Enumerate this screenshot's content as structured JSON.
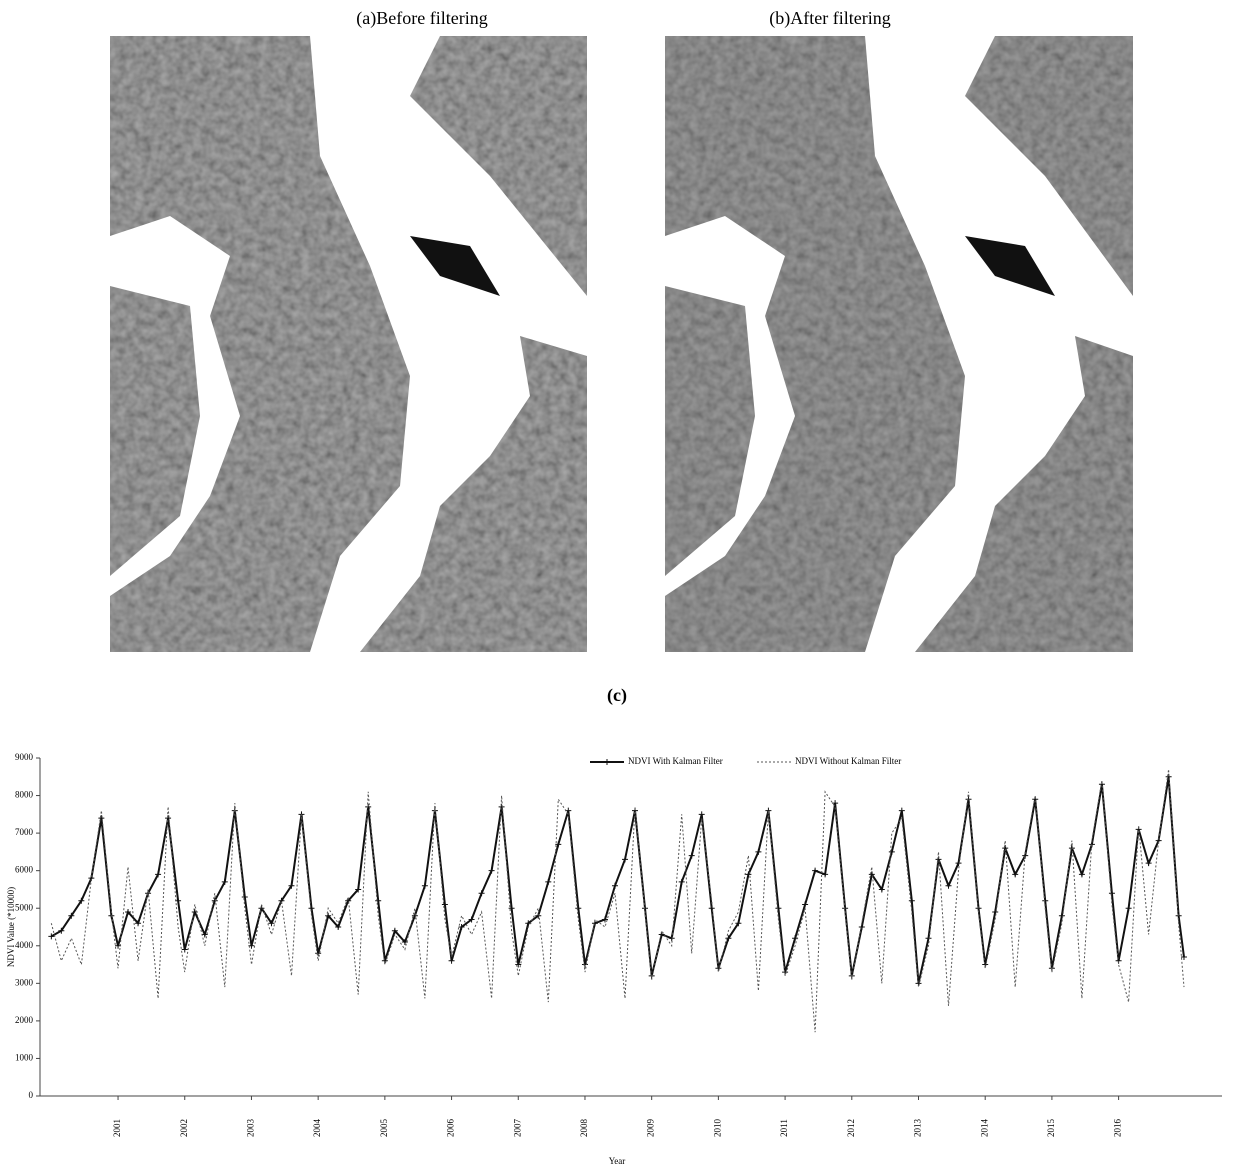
{
  "panels": [
    {
      "title": "(a)Before filtering"
    },
    {
      "title": "(b)After filtering"
    }
  ],
  "chart_data": {
    "type": "line",
    "title": "(c)",
    "x_label": "Year",
    "y_label": "NDVI Value (*10000)",
    "x": [
      2000,
      2000.15,
      2000.3,
      2000.45,
      2000.6,
      2000.75,
      2000.9,
      2001,
      2001.15,
      2001.3,
      2001.45,
      2001.6,
      2001.75,
      2001.9,
      2002,
      2002.15,
      2002.3,
      2002.45,
      2002.6,
      2002.75,
      2002.9,
      2003,
      2003.15,
      2003.3,
      2003.45,
      2003.6,
      2003.75,
      2003.9,
      2004,
      2004.15,
      2004.3,
      2004.45,
      2004.6,
      2004.75,
      2004.9,
      2005,
      2005.15,
      2005.3,
      2005.45,
      2005.6,
      2005.75,
      2005.9,
      2006,
      2006.15,
      2006.3,
      2006.45,
      2006.6,
      2006.75,
      2006.9,
      2007,
      2007.15,
      2007.3,
      2007.45,
      2007.6,
      2007.75,
      2007.9,
      2008,
      2008.15,
      2008.3,
      2008.45,
      2008.6,
      2008.75,
      2008.9,
      2009,
      2009.15,
      2009.3,
      2009.45,
      2009.6,
      2009.75,
      2009.9,
      2010,
      2010.15,
      2010.3,
      2010.45,
      2010.6,
      2010.75,
      2010.9,
      2011,
      2011.15,
      2011.3,
      2011.45,
      2011.6,
      2011.75,
      2011.9,
      2012,
      2012.15,
      2012.3,
      2012.45,
      2012.6,
      2012.75,
      2012.9,
      2013,
      2013.15,
      2013.3,
      2013.45,
      2013.6,
      2013.75,
      2013.9,
      2014,
      2014.15,
      2014.3,
      2014.45,
      2014.6,
      2014.75,
      2014.9,
      2015,
      2015.15,
      2015.3,
      2015.45,
      2015.6,
      2015.75,
      2015.9,
      2016,
      2016.15,
      2016.3,
      2016.45,
      2016.6,
      2016.75,
      2016.9,
      2016.98
    ],
    "series": [
      {
        "name": "NDVI With Kalman Filter",
        "color": "#111111",
        "line_style": "solid",
        "marker": "cross",
        "values": [
          4250,
          4400,
          4800,
          5200,
          5800,
          7400,
          4800,
          4000,
          4900,
          4600,
          5400,
          5900,
          7400,
          5200,
          3900,
          4900,
          4300,
          5200,
          5700,
          7600,
          5300,
          4000,
          5000,
          4600,
          5200,
          5600,
          7500,
          5000,
          3800,
          4800,
          4500,
          5200,
          5500,
          7700,
          5200,
          3600,
          4400,
          4100,
          4800,
          5600,
          7600,
          5100,
          3600,
          4500,
          4700,
          5400,
          6000,
          7700,
          5000,
          3500,
          4600,
          4800,
          5700,
          6700,
          7600,
          5000,
          3500,
          4600,
          4700,
          5600,
          6300,
          7600,
          5000,
          3200,
          4300,
          4200,
          5700,
          6400,
          7500,
          5000,
          3400,
          4200,
          4600,
          5900,
          6500,
          7600,
          5000,
          3300,
          4200,
          5100,
          6000,
          5900,
          7800,
          5000,
          3200,
          4500,
          5900,
          5500,
          6500,
          7600,
          5200,
          3000,
          4200,
          6300,
          5600,
          6200,
          7900,
          5000,
          3500,
          4900,
          6600,
          5900,
          6400,
          7900,
          5200,
          3400,
          4800,
          6600,
          5900,
          6700,
          8300,
          5400,
          3600,
          5000,
          7100,
          6200,
          6800,
          8500,
          4800,
          3700
        ]
      },
      {
        "name": "NDVI Without Kalman Filter",
        "color": "#555555",
        "line_style": "dashed",
        "marker": "none",
        "values": [
          4600,
          3600,
          4200,
          3500,
          5800,
          7600,
          4900,
          3400,
          6100,
          3600,
          5500,
          2600,
          7700,
          4500,
          3300,
          5100,
          4000,
          5400,
          2900,
          7800,
          5000,
          3500,
          5100,
          4300,
          5200,
          3200,
          7500,
          4800,
          3600,
          5000,
          4600,
          5300,
          2700,
          8100,
          4800,
          3500,
          4300,
          3900,
          5000,
          2600,
          7800,
          4700,
          3700,
          4800,
          4300,
          4900,
          2600,
          8000,
          4400,
          3200,
          4500,
          5000,
          2500,
          7900,
          7500,
          4700,
          3300,
          4700,
          4500,
          5400,
          2600,
          7700,
          4900,
          3100,
          4400,
          4000,
          7500,
          3800,
          7400,
          5200,
          3300,
          4400,
          4900,
          6400,
          2800,
          7600,
          4700,
          3200,
          4000,
          5000,
          1700,
          8100,
          7700,
          4900,
          3100,
          4600,
          6100,
          3000,
          7000,
          7400,
          4900,
          2900,
          4000,
          6500,
          2400,
          6000,
          8100,
          4900,
          3400,
          4700,
          6800,
          2900,
          6500,
          8000,
          5000,
          3300,
          4600,
          6800,
          2600,
          6800,
          8400,
          5100,
          3500,
          2500,
          7200,
          4300,
          6800,
          8700,
          4600,
          2900
        ]
      }
    ],
    "xlim": [
      1999.83,
      2017.55
    ],
    "xticks": [
      2001,
      2002,
      2003,
      2004,
      2005,
      2006,
      2007,
      2008,
      2009,
      2010,
      2011,
      2012,
      2013,
      2014,
      2015,
      2016
    ],
    "ylim": [
      0,
      9000
    ],
    "yticks": [
      0,
      1000,
      2000,
      3000,
      4000,
      5000,
      6000,
      7000,
      8000,
      9000
    ],
    "legend": "top"
  }
}
